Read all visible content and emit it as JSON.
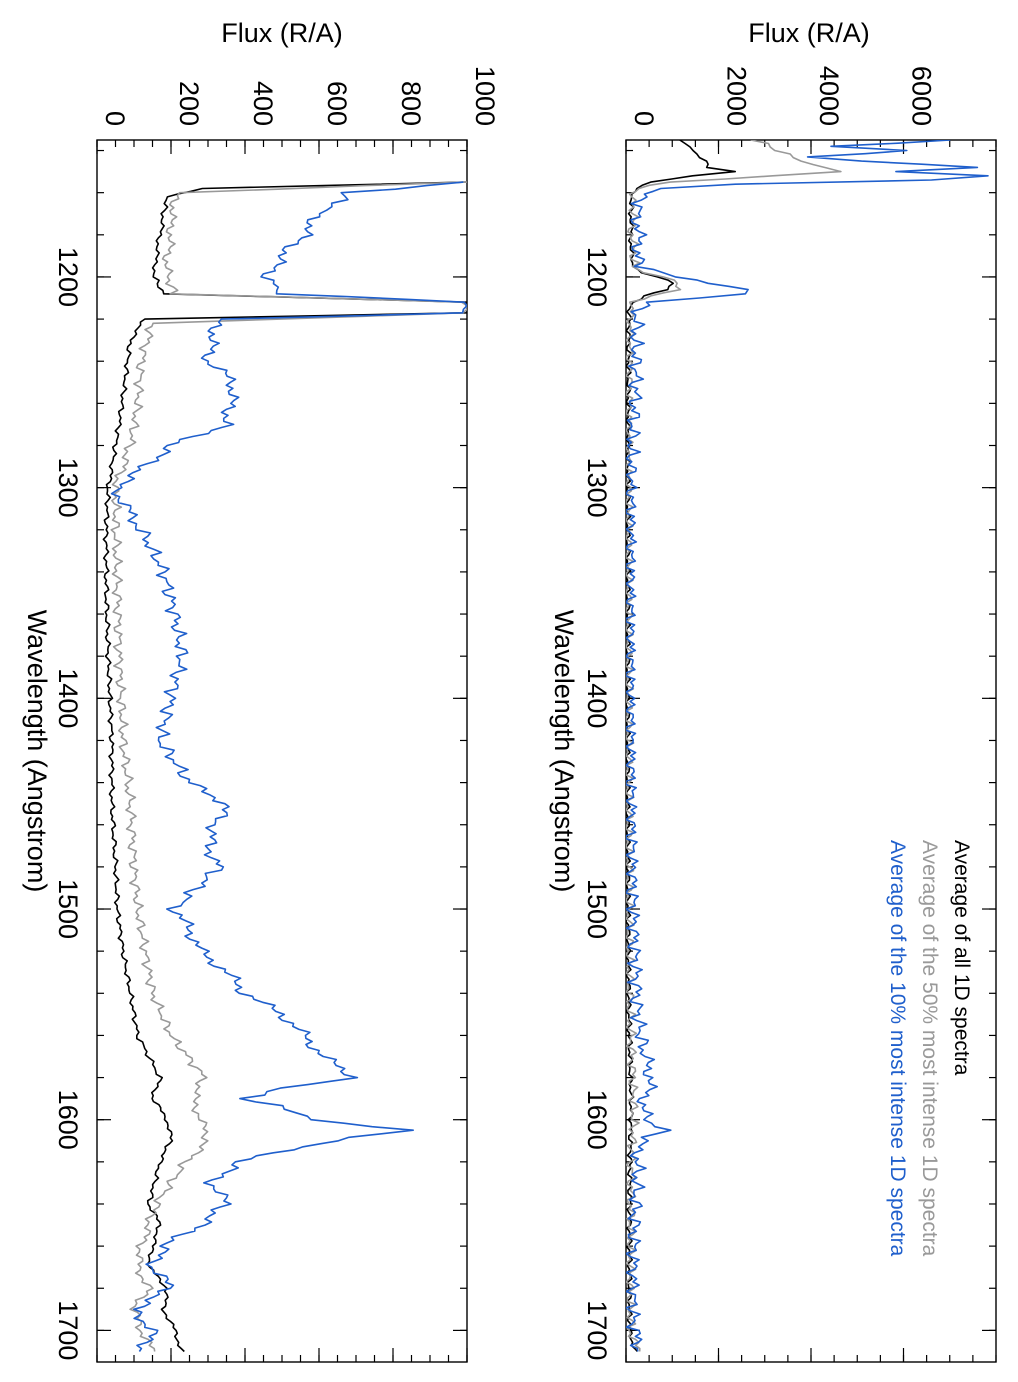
{
  "colors": {
    "all": "#000000",
    "top50": "#999999",
    "top10": "#1f5fcc"
  },
  "chart_data": [
    {
      "type": "line",
      "panel": "right",
      "xlabel": "Flux (R/A)",
      "ylabel": "Wavelength (Angstrom)",
      "flux_ticks": [
        0,
        2000,
        4000,
        6000
      ],
      "flux_lim": [
        0,
        8000
      ],
      "wavelength_ticks": [
        1200,
        1300,
        1400,
        1500,
        1600,
        1700
      ],
      "wavelength_lim": [
        1135,
        1715
      ],
      "legend": [
        "Average of all 1D spectra",
        "Average of the 50% most intense 1D spectra",
        "Average of the 10% most intense 1D spectra"
      ],
      "legend_position": "bottom-right",
      "series": [
        {
          "name": "Average of all 1D spectra",
          "color": "#000000",
          "points": [
            [
              1135,
              1200
            ],
            [
              1140,
              1450
            ],
            [
              1145,
              1700
            ],
            [
              1148,
              1800
            ],
            [
              1150,
              2300
            ],
            [
              1152,
              1500
            ],
            [
              1155,
              500
            ],
            [
              1158,
              200
            ],
            [
              1162,
              120
            ],
            [
              1170,
              110
            ],
            [
              1180,
              110
            ],
            [
              1190,
              120
            ],
            [
              1195,
              150
            ],
            [
              1198,
              300
            ],
            [
              1200,
              700
            ],
            [
              1203,
              1000
            ],
            [
              1206,
              900
            ],
            [
              1209,
              400
            ],
            [
              1212,
              150
            ],
            [
              1215,
              80
            ],
            [
              1230,
              60
            ],
            [
              1250,
              50
            ],
            [
              1280,
              40
            ],
            [
              1300,
              35
            ],
            [
              1350,
              35
            ],
            [
              1400,
              30
            ],
            [
              1450,
              30
            ],
            [
              1500,
              40
            ],
            [
              1550,
              60
            ],
            [
              1580,
              100
            ],
            [
              1600,
              110
            ],
            [
              1620,
              90
            ],
            [
              1650,
              80
            ],
            [
              1680,
              70
            ],
            [
              1700,
              80
            ],
            [
              1710,
              200
            ]
          ]
        },
        {
          "name": "Average of the 50% most intense 1D spectra",
          "color": "#999999",
          "points": [
            [
              1135,
              2800
            ],
            [
              1140,
              3300
            ],
            [
              1145,
              3800
            ],
            [
              1150,
              4600
            ],
            [
              1152,
              3200
            ],
            [
              1155,
              900
            ],
            [
              1158,
              300
            ],
            [
              1162,
              150
            ],
            [
              1170,
              140
            ],
            [
              1180,
              140
            ],
            [
              1190,
              150
            ],
            [
              1195,
              200
            ],
            [
              1198,
              400
            ],
            [
              1200,
              800
            ],
            [
              1203,
              1200
            ],
            [
              1206,
              1100
            ],
            [
              1209,
              500
            ],
            [
              1212,
              200
            ],
            [
              1215,
              100
            ],
            [
              1230,
              80
            ],
            [
              1250,
              70
            ],
            [
              1280,
              50
            ],
            [
              1300,
              45
            ],
            [
              1350,
              40
            ],
            [
              1400,
              40
            ],
            [
              1450,
              45
            ],
            [
              1500,
              55
            ],
            [
              1550,
              80
            ],
            [
              1580,
              150
            ],
            [
              1600,
              160
            ],
            [
              1620,
              120
            ],
            [
              1650,
              100
            ],
            [
              1680,
              90
            ],
            [
              1700,
              100
            ],
            [
              1710,
              250
            ]
          ]
        },
        {
          "name": "Average of the 10% most intense 1D spectra",
          "color": "#1f5fcc",
          "points": [
            [
              1135,
              7000
            ],
            [
              1138,
              4500
            ],
            [
              1140,
              6000
            ],
            [
              1143,
              4000
            ],
            [
              1145,
              5000
            ],
            [
              1148,
              7600
            ],
            [
              1150,
              5800
            ],
            [
              1152,
              7900
            ],
            [
              1154,
              6500
            ],
            [
              1156,
              2500
            ],
            [
              1158,
              600
            ],
            [
              1162,
              300
            ],
            [
              1170,
              260
            ],
            [
              1180,
              260
            ],
            [
              1190,
              280
            ],
            [
              1195,
              350
            ],
            [
              1198,
              700
            ],
            [
              1200,
              1200
            ],
            [
              1203,
              1800
            ],
            [
              1206,
              2500
            ],
            [
              1208,
              2700
            ],
            [
              1210,
              1500
            ],
            [
              1212,
              500
            ],
            [
              1215,
              250
            ],
            [
              1230,
              200
            ],
            [
              1250,
              220
            ],
            [
              1280,
              120
            ],
            [
              1300,
              100
            ],
            [
              1350,
              90
            ],
            [
              1400,
              90
            ],
            [
              1450,
              110
            ],
            [
              1500,
              150
            ],
            [
              1550,
              250
            ],
            [
              1570,
              400
            ],
            [
              1580,
              550
            ],
            [
              1590,
              400
            ],
            [
              1600,
              400
            ],
            [
              1605,
              850
            ],
            [
              1610,
              300
            ],
            [
              1620,
              250
            ],
            [
              1650,
              180
            ],
            [
              1680,
              150
            ],
            [
              1700,
              170
            ],
            [
              1710,
              300
            ]
          ]
        }
      ]
    },
    {
      "type": "line",
      "panel": "left",
      "xlabel": "Flux (R/A)",
      "ylabel": "Wavelength (Angstrom)",
      "flux_ticks": [
        0,
        200,
        400,
        600,
        800,
        1000
      ],
      "flux_lim": [
        0,
        1000
      ],
      "wavelength_ticks": [
        1200,
        1300,
        1400,
        1500,
        1600,
        1700
      ],
      "wavelength_lim": [
        1135,
        1715
      ],
      "series": [
        {
          "name": "Average of all 1D spectra",
          "color": "#000000",
          "points": [
            [
              1155,
              1000
            ],
            [
              1158,
              280
            ],
            [
              1162,
              190
            ],
            [
              1170,
              180
            ],
            [
              1180,
              170
            ],
            [
              1190,
              160
            ],
            [
              1200,
              155
            ],
            [
              1208,
              180
            ],
            [
              1212,
              1000
            ],
            [
              1217,
              1000
            ],
            [
              1220,
              130
            ],
            [
              1230,
              90
            ],
            [
              1250,
              75
            ],
            [
              1270,
              60
            ],
            [
              1290,
              40
            ],
            [
              1300,
              30
            ],
            [
              1320,
              25
            ],
            [
              1350,
              25
            ],
            [
              1380,
              30
            ],
            [
              1400,
              35
            ],
            [
              1420,
              40
            ],
            [
              1450,
              40
            ],
            [
              1480,
              50
            ],
            [
              1500,
              55
            ],
            [
              1520,
              70
            ],
            [
              1540,
              90
            ],
            [
              1560,
              110
            ],
            [
              1580,
              170
            ],
            [
              1590,
              150
            ],
            [
              1600,
              190
            ],
            [
              1610,
              200
            ],
            [
              1620,
              170
            ],
            [
              1640,
              140
            ],
            [
              1650,
              170
            ],
            [
              1660,
              150
            ],
            [
              1670,
              140
            ],
            [
              1680,
              190
            ],
            [
              1690,
              180
            ],
            [
              1700,
              210
            ],
            [
              1710,
              230
            ]
          ]
        },
        {
          "name": "Average of the 50% most intense 1D spectra",
          "color": "#999999",
          "points": [
            [
              1155,
              1000
            ],
            [
              1160,
              220
            ],
            [
              1170,
              200
            ],
            [
              1180,
              200
            ],
            [
              1190,
              190
            ],
            [
              1200,
              190
            ],
            [
              1208,
              210
            ],
            [
              1212,
              1000
            ],
            [
              1217,
              1000
            ],
            [
              1222,
              150
            ],
            [
              1240,
              120
            ],
            [
              1260,
              110
            ],
            [
              1280,
              90
            ],
            [
              1290,
              70
            ],
            [
              1300,
              50
            ],
            [
              1320,
              50
            ],
            [
              1350,
              55
            ],
            [
              1380,
              60
            ],
            [
              1400,
              65
            ],
            [
              1420,
              70
            ],
            [
              1450,
              90
            ],
            [
              1480,
              100
            ],
            [
              1500,
              110
            ],
            [
              1520,
              130
            ],
            [
              1540,
              150
            ],
            [
              1560,
              200
            ],
            [
              1580,
              290
            ],
            [
              1590,
              260
            ],
            [
              1600,
              280
            ],
            [
              1610,
              300
            ],
            [
              1620,
              240
            ],
            [
              1640,
              160
            ],
            [
              1650,
              140
            ],
            [
              1660,
              120
            ],
            [
              1670,
              110
            ],
            [
              1680,
              140
            ],
            [
              1690,
              100
            ],
            [
              1700,
              120
            ],
            [
              1710,
              150
            ]
          ]
        },
        {
          "name": "Average of the 10% most intense 1D spectra",
          "color": "#1f5fcc",
          "points": [
            [
              1155,
              1000
            ],
            [
              1160,
              680
            ],
            [
              1165,
              650
            ],
            [
              1170,
              600
            ],
            [
              1180,
              560
            ],
            [
              1190,
              500
            ],
            [
              1200,
              460
            ],
            [
              1208,
              500
            ],
            [
              1212,
              1000
            ],
            [
              1217,
              1000
            ],
            [
              1220,
              330
            ],
            [
              1230,
              310
            ],
            [
              1240,
              300
            ],
            [
              1250,
              370
            ],
            [
              1260,
              360
            ],
            [
              1270,
              350
            ],
            [
              1280,
              200
            ],
            [
              1290,
              130
            ],
            [
              1300,
              50
            ],
            [
              1310,
              80
            ],
            [
              1320,
              120
            ],
            [
              1340,
              180
            ],
            [
              1360,
              210
            ],
            [
              1380,
              230
            ],
            [
              1400,
              200
            ],
            [
              1420,
              170
            ],
            [
              1440,
              250
            ],
            [
              1450,
              350
            ],
            [
              1460,
              320
            ],
            [
              1470,
              300
            ],
            [
              1480,
              330
            ],
            [
              1500,
              210
            ],
            [
              1510,
              250
            ],
            [
              1520,
              280
            ],
            [
              1530,
              350
            ],
            [
              1540,
              400
            ],
            [
              1550,
              500
            ],
            [
              1560,
              560
            ],
            [
              1570,
              610
            ],
            [
              1580,
              700
            ],
            [
              1585,
              500
            ],
            [
              1590,
              400
            ],
            [
              1595,
              520
            ],
            [
              1600,
              580
            ],
            [
              1605,
              840
            ],
            [
              1610,
              630
            ],
            [
              1620,
              380
            ],
            [
              1630,
              310
            ],
            [
              1640,
              350
            ],
            [
              1650,
              280
            ],
            [
              1660,
              180
            ],
            [
              1670,
              150
            ],
            [
              1680,
              200
            ],
            [
              1690,
              100
            ],
            [
              1700,
              150
            ],
            [
              1710,
              120
            ]
          ]
        }
      ]
    }
  ]
}
